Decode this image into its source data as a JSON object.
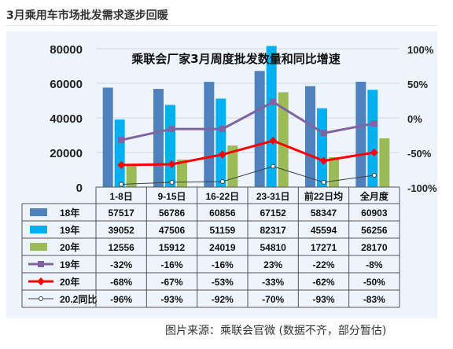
{
  "heading": "3月乘用车市场批发需求逐步回暖",
  "source": "图片来源：乘联会官微 (数据不齐，部分暂估)",
  "chart_data": {
    "type": "bar",
    "title": "乘联会厂家3月周度批发数量和同比增速",
    "categories": [
      "1-8日",
      "9-15日",
      "16-22日",
      "23-31日",
      "前22日均",
      "全月度"
    ],
    "ylim": [
      0,
      80000
    ],
    "yticks": [
      "0",
      "20000",
      "40000",
      "60000",
      "80000"
    ],
    "y2lim": [
      -100,
      100
    ],
    "y2ticks": [
      "-100%",
      "-50%",
      "0%",
      "50%",
      "100%"
    ],
    "bar_series": [
      {
        "name": "18年",
        "values": [
          57517,
          56786,
          60856,
          67152,
          58347,
          60903
        ],
        "labels": [
          "57517",
          "56786",
          "60856",
          "67152",
          "58347",
          "60903"
        ],
        "color": "#4f81bd"
      },
      {
        "name": "19年",
        "values": [
          39052,
          47506,
          51159,
          82317,
          45594,
          56256
        ],
        "labels": [
          "39052",
          "47506",
          "51159",
          "82317",
          "45594",
          "56256"
        ],
        "color": "#00b0f0"
      },
      {
        "name": "20年",
        "values": [
          12556,
          15912,
          24019,
          54810,
          17271,
          28170
        ],
        "labels": [
          "12556",
          "15912",
          "24019",
          "54810",
          "17271",
          "28170"
        ],
        "color": "#9bbb59"
      }
    ],
    "line_series": [
      {
        "name": "19年",
        "values": [
          -32,
          -16,
          -16,
          23,
          -22,
          -8
        ],
        "labels": [
          "-32%",
          "-16%",
          "-16%",
          "23%",
          "-22%",
          "-8%"
        ],
        "color": "#8064a2"
      },
      {
        "name": "20年",
        "values": [
          -68,
          -67,
          -53,
          -33,
          -62,
          -50
        ],
        "labels": [
          "-68%",
          "-67%",
          "-53%",
          "-33%",
          "-62%",
          "-50%"
        ],
        "color": "#ff0000"
      },
      {
        "name": "20.2同比",
        "values": [
          -96,
          -93,
          -92,
          -70,
          -93,
          -83
        ],
        "labels": [
          "-96%",
          "-93%",
          "-92%",
          "-70%",
          "-93%",
          "-83%"
        ],
        "color": "#404040"
      }
    ],
    "grid": true,
    "legend": "data-table"
  }
}
